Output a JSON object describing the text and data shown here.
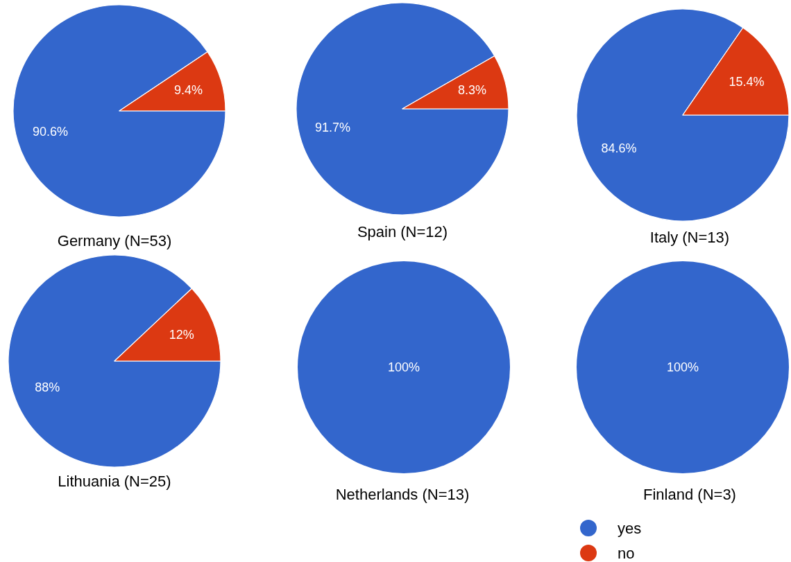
{
  "chart_data": [
    {
      "type": "pie",
      "title": "Germany (N=53)",
      "categories": [
        null,
        null
      ],
      "values": [
        90.6,
        9.4
      ],
      "colors": [
        "#3366cc",
        "#dc3912"
      ],
      "value_labels": [
        "90.6%",
        "9.4%"
      ]
    },
    {
      "type": "pie",
      "title": "Spain (N=12)",
      "categories": [
        null,
        null
      ],
      "values": [
        91.7,
        8.3
      ],
      "colors": [
        "#3366cc",
        "#dc3912"
      ],
      "value_labels": [
        "91.7%",
        "8.3%"
      ]
    },
    {
      "type": "pie",
      "title": "Italy (N=13)",
      "categories": [
        null,
        null
      ],
      "values": [
        84.6,
        15.4
      ],
      "colors": [
        "#3366cc",
        "#dc3912"
      ],
      "value_labels": [
        "84.6%",
        "15.4%"
      ]
    },
    {
      "type": "pie",
      "title": "Lithuania (N=25)",
      "categories": [
        null,
        null
      ],
      "values": [
        88,
        12
      ],
      "colors": [
        "#3366cc",
        "#dc3912"
      ],
      "value_labels": [
        "88%",
        "12%"
      ]
    },
    {
      "type": "pie",
      "title": "Netherlands (N=13)",
      "categories": [
        null
      ],
      "values": [
        100
      ],
      "colors": [
        "#3366cc"
      ],
      "value_labels": [
        "100%"
      ]
    },
    {
      "type": "pie",
      "title": "Finland (N=3)",
      "categories": [
        "yes",
        "no"
      ],
      "values": [
        100,
        0
      ],
      "colors": [
        "#3366cc",
        "#dc3912"
      ],
      "value_labels": [
        "100%",
        null
      ],
      "legend": "bottom"
    }
  ]
}
